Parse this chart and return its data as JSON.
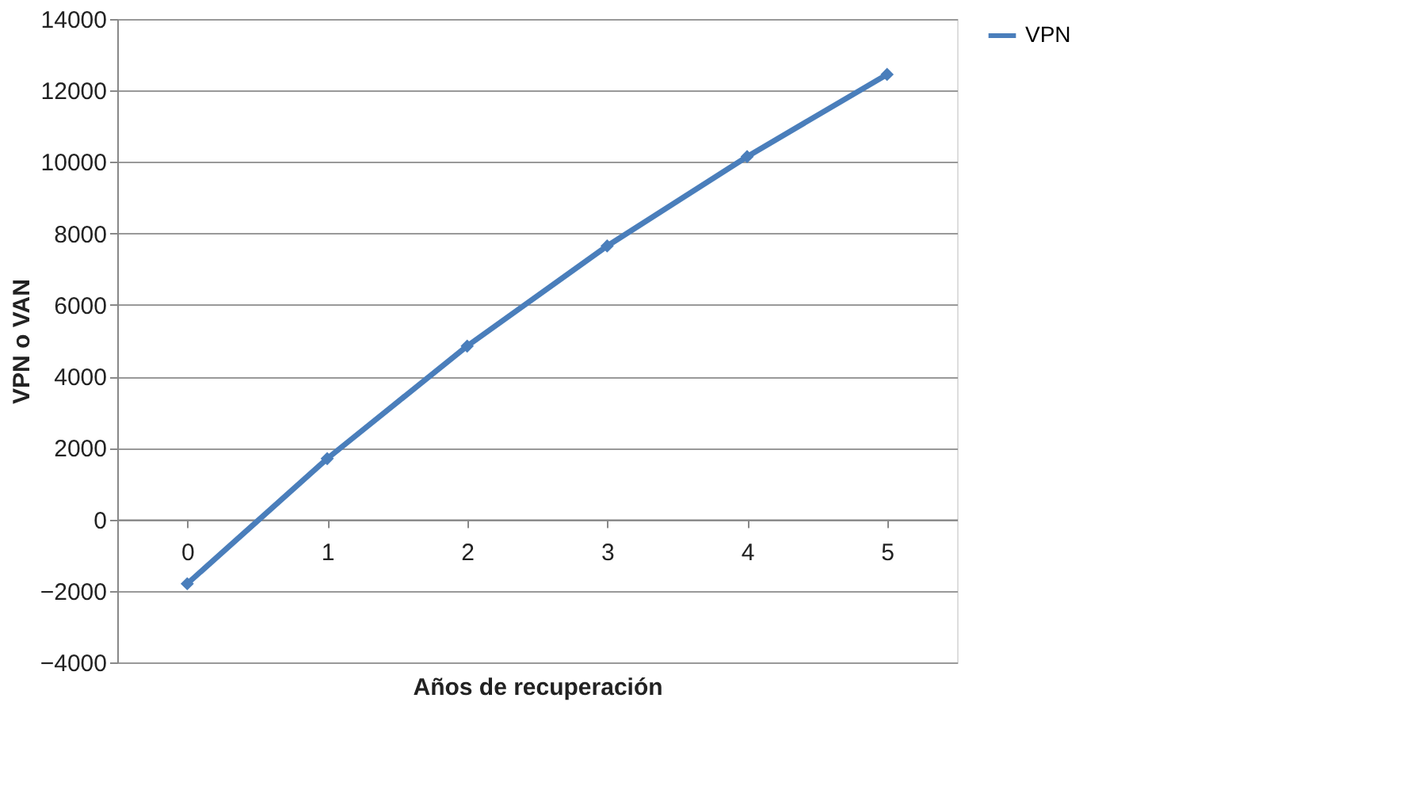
{
  "chart_data": {
    "type": "line",
    "xlabel": "Años de recuperación",
    "ylabel": "VPN o VAN",
    "categories": [
      "0",
      "1",
      "2",
      "3",
      "4",
      "5"
    ],
    "series": [
      {
        "name": "VPN",
        "color": "#4a7ebb",
        "values": [
          -1800,
          1700,
          4850,
          7650,
          10150,
          12450
        ]
      }
    ],
    "ylim": [
      -4000,
      14000
    ],
    "yticks": [
      -4000,
      -2000,
      0,
      2000,
      4000,
      6000,
      8000,
      10000,
      12000,
      14000
    ],
    "grid": "y",
    "legend": "right",
    "marker": "diamond",
    "line_style": "solid"
  }
}
